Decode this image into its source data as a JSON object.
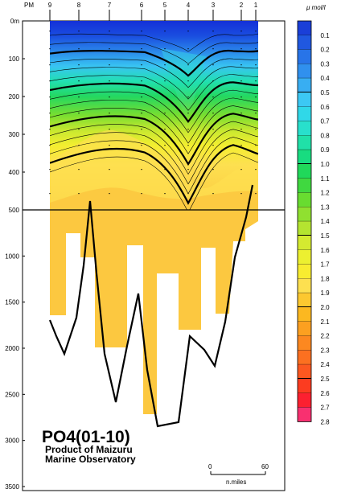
{
  "chart_data": {
    "type": "heatmap",
    "title": "PO4(01-10)",
    "credit_lines": [
      "Product of Maizuru",
      "Marine Observatory"
    ],
    "unit_label": "μ mol/l",
    "top_axis": {
      "label": "PM",
      "stations": [
        "9",
        "8",
        "7",
        "6",
        "5",
        "4",
        "3",
        "2",
        "1"
      ]
    },
    "depth_ticks": [
      {
        "label": "0m",
        "value": 0
      },
      {
        "label": "100",
        "value": 100
      },
      {
        "label": "200",
        "value": 200
      },
      {
        "label": "300",
        "value": 300
      },
      {
        "label": "400",
        "value": 400
      },
      {
        "label": "500",
        "value": 500
      },
      {
        "label": "1000",
        "value": 1000
      },
      {
        "label": "1500",
        "value": 1500
      },
      {
        "label": "2000",
        "value": 2000
      },
      {
        "label": "2500",
        "value": 2500
      },
      {
        "label": "3000",
        "value": 3000
      },
      {
        "label": "3500",
        "value": 3500
      }
    ],
    "scale_break_depth": 500,
    "upper_depth_range": [
      0,
      500
    ],
    "lower_depth_range": [
      500,
      3500
    ],
    "color_scale": [
      {
        "value": "0.1",
        "color": "#1a3fd8"
      },
      {
        "value": "0.2",
        "color": "#2058e0"
      },
      {
        "value": "0.3",
        "color": "#2874e8"
      },
      {
        "value": "0.4",
        "color": "#3090ee"
      },
      {
        "value": "0.5",
        "color": "#38aef2"
      },
      {
        "value": "0.6",
        "color": "#3cc8f4"
      },
      {
        "value": "0.7",
        "color": "#30d8e8"
      },
      {
        "value": "0.8",
        "color": "#28e0cc"
      },
      {
        "value": "0.9",
        "color": "#20e0a8"
      },
      {
        "value": "1.0",
        "color": "#18dc80"
      },
      {
        "value": "1.1",
        "color": "#20d85a"
      },
      {
        "value": "1.2",
        "color": "#40d840"
      },
      {
        "value": "1.3",
        "color": "#68dc30"
      },
      {
        "value": "1.4",
        "color": "#90e030"
      },
      {
        "value": "1.5",
        "color": "#b4e430"
      },
      {
        "value": "1.6",
        "color": "#d4ea30"
      },
      {
        "value": "1.7",
        "color": "#ecf030"
      },
      {
        "value": "1.8",
        "color": "#f8ec30"
      },
      {
        "value": "1.9",
        "color": "#fde050"
      },
      {
        "value": "2.0",
        "color": "#fcc830"
      },
      {
        "value": "2.1",
        "color": "#fcb820"
      },
      {
        "value": "2.2",
        "color": "#fca020"
      },
      {
        "value": "2.3",
        "color": "#fc8820"
      },
      {
        "value": "2.4",
        "color": "#fc7020"
      },
      {
        "value": "2.5",
        "color": "#fc5820"
      },
      {
        "value": "2.6",
        "color": "#fc3c20"
      },
      {
        "value": "2.7",
        "color": "#fc2030"
      },
      {
        "value": "2.8",
        "color": "#f83070"
      }
    ],
    "bold_contour_values": [
      "0.5",
      "1.0",
      "1.5",
      "2.0",
      "2.5"
    ],
    "distance_scale": {
      "start": "0",
      "end": "60",
      "unit": "n.miles"
    }
  }
}
